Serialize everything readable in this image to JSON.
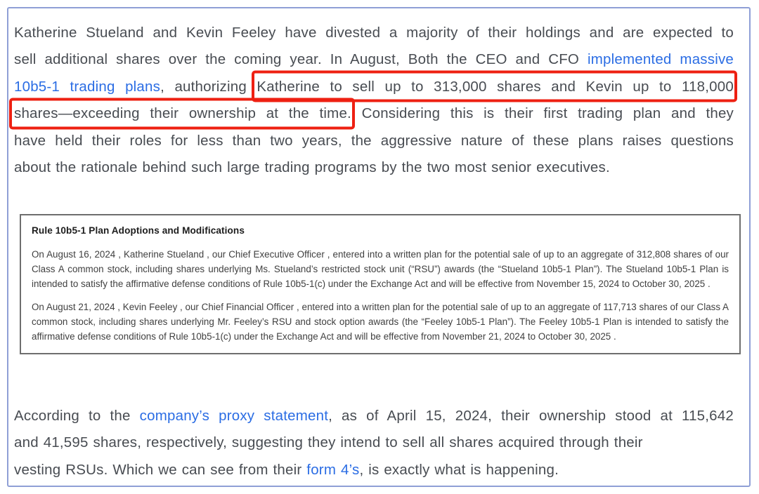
{
  "colors": {
    "page_border": "#8f9fd6",
    "body_text": "#484c52",
    "link": "#2b6de4",
    "annotation": "#ee2012",
    "quote_border": "#6e6e6e",
    "quote_text": "#3f3f3f"
  },
  "p1": {
    "l1": "Katherine Stueland and Kevin Feeley have divested a majority of their holdings and are expected to",
    "l2_text": "sell additional shares over the coming year. In August, Both the CEO and CFO ",
    "l2_link": "implemented massive",
    "l3_link": "10b5-1 trading plans",
    "l3_mid": ", authorizing ",
    "l3_highlight": "Katherine to sell up to 313,000 shares and Kevin up to 118,000",
    "l4_highlight": "shares—exceeding their ownership at the time.",
    "l4_rest": " Considering this is their first trading plan and they",
    "l5": "have held their roles for less than two years, the aggressive nature of these plans raises questions",
    "l6": "about the rationale behind such large trading programs by the two most senior executives."
  },
  "quote": {
    "title": "Rule 10b5-1 Plan Adoptions and Modifications",
    "paragraphs": [
      "On August 16, 2024 , Katherine Stueland , our Chief Executive Officer , entered into a written plan for the potential sale of up to an aggregate of 312,808 shares of our Class A common stock, including shares underlying Ms. Stueland’s restricted stock unit (“RSU”) awards (the “Stueland 10b5-1 Plan”). The Stueland 10b5-1 Plan is intended to satisfy the affirmative defense conditions of Rule 10b5-1(c) under the Exchange Act and will be effective from November 15, 2024 to October 30, 2025 .",
      "On August 21, 2024 , Kevin Feeley , our Chief Financial Officer , entered into a written plan for the potential sale of up to an aggregate of 117,713 shares of our Class A common stock, including shares underlying Mr. Feeley’s RSU and stock option awards (the “Feeley 10b5-1 Plan”). The Feeley 10b5-1 Plan is intended to satisfy the affirmative defense conditions of Rule 10b5-1(c) under the Exchange Act and will be effective from November 21, 2024 to October 30, 2025 ."
    ]
  },
  "p2": {
    "l1_pre": "According to the ",
    "l1_link": "company’s proxy statement",
    "l1_post": ", as of April 15, 2024, their ownership stood at 115,642",
    "l2": "and 41,595 shares, respectively, suggesting they intend to sell all shares acquired through their",
    "l3_pre": "vesting RSUs. Which we can see from their ",
    "l3_link": "form 4’s",
    "l3_post": ", is exactly what is happening."
  }
}
